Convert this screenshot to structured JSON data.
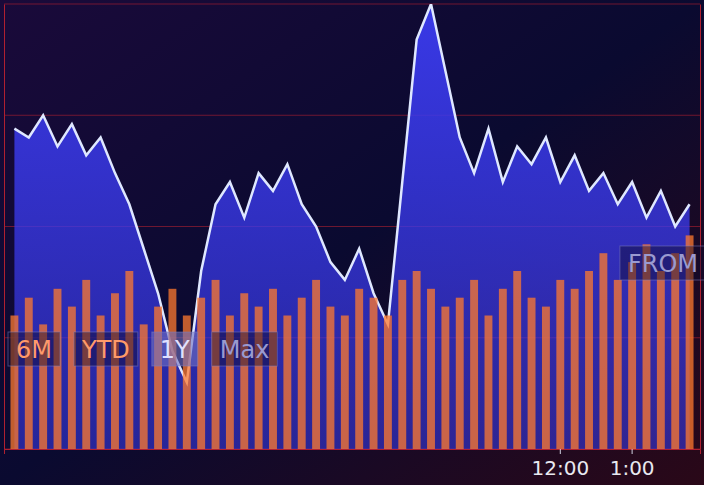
{
  "chart_data": {
    "type": "area",
    "categories": [
      null,
      null,
      null,
      null,
      null,
      null,
      null,
      null,
      null,
      null,
      null,
      null,
      null,
      null,
      null,
      null,
      null,
      null,
      null,
      null,
      null,
      null,
      null,
      null,
      null,
      null,
      null,
      null,
      null,
      null,
      null,
      null,
      null,
      null,
      null,
      null,
      null,
      null,
      "12:00",
      null,
      null,
      null,
      null,
      "1:00",
      null,
      null,
      null,
      null
    ],
    "series": [
      {
        "type": "area",
        "color": "#3b3bf0",
        "values": [
          72,
          70,
          75,
          68,
          73,
          66,
          70,
          62,
          55,
          45,
          35,
          22,
          15,
          40,
          55,
          60,
          52,
          62,
          58,
          64,
          55,
          50,
          42,
          38,
          45,
          35,
          28,
          60,
          92,
          100,
          85,
          70,
          62,
          72,
          60,
          68,
          64,
          70,
          60,
          66,
          58,
          62,
          55,
          60,
          52,
          58,
          50,
          55
        ]
      },
      {
        "type": "bar",
        "color": "#ff7a2e",
        "axis": "y2",
        "values": [
          30,
          34,
          28,
          36,
          32,
          38,
          30,
          35,
          40,
          28,
          32,
          36,
          30,
          34,
          38,
          30,
          35,
          32,
          36,
          30,
          34,
          38,
          32,
          30,
          36,
          34,
          30,
          38,
          40,
          36,
          32,
          34,
          38,
          30,
          36,
          40,
          34,
          32,
          38,
          36,
          40,
          44,
          38,
          42,
          46,
          40,
          44,
          48
        ]
      }
    ],
    "ylim": [
      0,
      100
    ],
    "yticks": [
      0,
      25,
      50,
      75,
      100
    ],
    "y2lim": [
      0,
      100
    ],
    "grid": true,
    "tick_labels": "x",
    "annotations": [
      "6M",
      "YTD",
      "1Y",
      "Max",
      "FROM"
    ]
  }
}
